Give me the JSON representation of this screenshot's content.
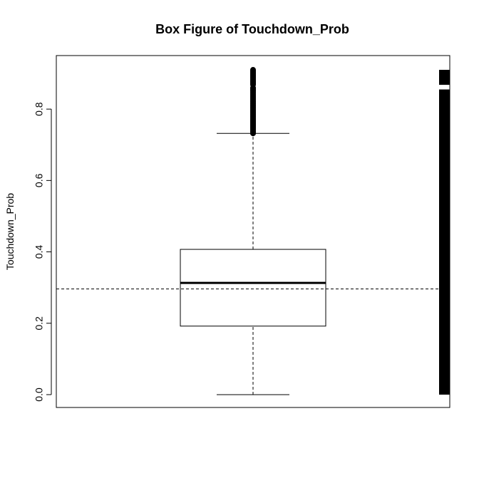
{
  "chart_data": {
    "type": "box",
    "title": "Box Figure of Touchdown_Prob",
    "xlabel": "",
    "ylabel": "Touchdown_Prob",
    "ylim": [
      -0.036,
      0.95
    ],
    "yticks": [
      0.0,
      0.2,
      0.4,
      0.6,
      0.8
    ],
    "ytick_labels": [
      "0.0",
      "0.2",
      "0.4",
      "0.6",
      "0.8"
    ],
    "grid": false,
    "box": {
      "whisker_low": 0.0,
      "q1": 0.192,
      "median": 0.313,
      "q3": 0.407,
      "whisker_high": 0.732
    },
    "outliers_range": [
      0.732,
      0.91
    ],
    "mean_reference_line": 0.296,
    "rug_segments": [
      [
        0.0,
        0.855
      ],
      [
        0.868,
        0.91
      ]
    ],
    "colors": {
      "ink": "#000000",
      "background": "#ffffff"
    }
  }
}
